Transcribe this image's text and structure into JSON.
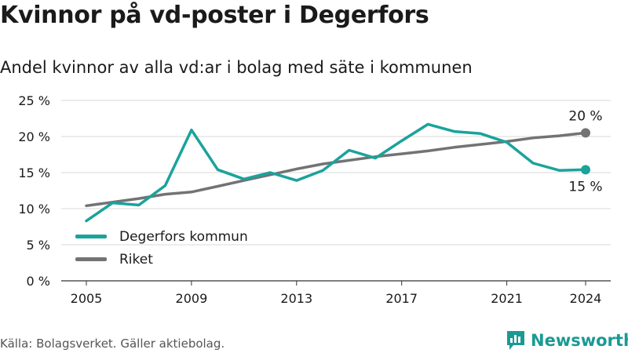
{
  "header": {
    "title": "Kvinnor på vd-poster i Degerfors",
    "subtitle": "Andel kvinnor av alla vd:ar i bolag med säte i kommunen"
  },
  "footer": {
    "source": "Källa: Bolagsverket. Gäller aktiebolag.",
    "brand": "Newsworthy"
  },
  "colors": {
    "degerfors": "#1aa39b",
    "riket": "#737275",
    "grid": "#d9d9d9",
    "brand": "#1a9a93"
  },
  "chart_data": {
    "type": "line",
    "title": "Kvinnor på vd-poster i Degerfors",
    "subtitle": "Andel kvinnor av alla vd:ar i bolag med säte i kommunen",
    "x_ticks": [
      "2005",
      "2009",
      "2013",
      "2017",
      "2021",
      "2024"
    ],
    "y_ticks": [
      "0 %",
      "5 %",
      "10 %",
      "15 %",
      "20 %",
      "25 %"
    ],
    "ylim": [
      0,
      25
    ],
    "xlim": [
      2005,
      2024
    ],
    "grid": true,
    "legend_position": "bottom-left",
    "series": [
      {
        "name": "Degerfors kommun",
        "color": "#1aa39b",
        "end_label": "15 %",
        "points": [
          [
            2005,
            8.3
          ],
          [
            2006,
            10.8
          ],
          [
            2007,
            10.5
          ],
          [
            2008,
            13.2
          ],
          [
            2009,
            20.9
          ],
          [
            2010,
            15.4
          ],
          [
            2011,
            14.1
          ],
          [
            2012,
            15.0
          ],
          [
            2013,
            13.9
          ],
          [
            2014,
            15.3
          ],
          [
            2015,
            18.1
          ],
          [
            2016,
            17.0
          ],
          [
            2017,
            19.4
          ],
          [
            2018,
            21.7
          ],
          [
            2019,
            20.7
          ],
          [
            2020,
            20.4
          ],
          [
            2021,
            19.2
          ],
          [
            2022,
            16.3
          ],
          [
            2023,
            15.3
          ],
          [
            2024,
            15.4
          ]
        ]
      },
      {
        "name": "Riket",
        "color": "#737275",
        "end_label": "20 %",
        "points": [
          [
            2005,
            10.4
          ],
          [
            2006,
            10.9
          ],
          [
            2007,
            11.4
          ],
          [
            2008,
            12.0
          ],
          [
            2009,
            12.3
          ],
          [
            2010,
            13.1
          ],
          [
            2011,
            13.9
          ],
          [
            2012,
            14.7
          ],
          [
            2013,
            15.5
          ],
          [
            2014,
            16.2
          ],
          [
            2015,
            16.7
          ],
          [
            2016,
            17.2
          ],
          [
            2017,
            17.6
          ],
          [
            2018,
            18.0
          ],
          [
            2019,
            18.5
          ],
          [
            2020,
            18.9
          ],
          [
            2021,
            19.3
          ],
          [
            2022,
            19.8
          ],
          [
            2023,
            20.1
          ],
          [
            2024,
            20.5
          ]
        ]
      }
    ]
  }
}
